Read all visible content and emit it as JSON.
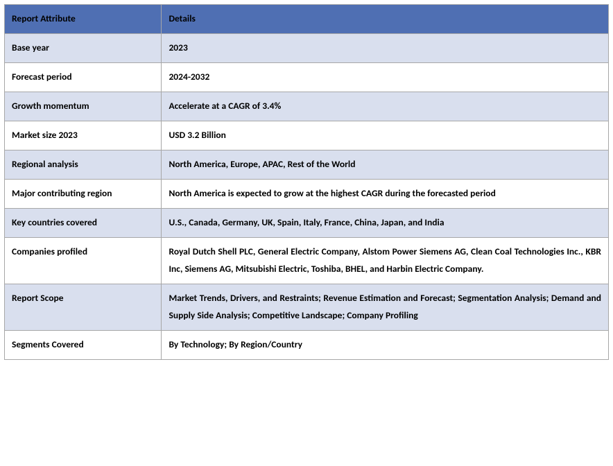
{
  "table": {
    "header_bg": "#4f6fb3",
    "header_fg": "#000000",
    "alt_row_bg": "#d9dfee",
    "row_bg": "#ffffff",
    "border_color": "#a7a7a7",
    "columns": [
      "Report Attribute",
      "Details"
    ],
    "rows": [
      {
        "attr": "Base year",
        "detail": "2023",
        "justify": false
      },
      {
        "attr": "Forecast period",
        "detail": "2024-2032",
        "justify": false
      },
      {
        "attr": "Growth momentum",
        "detail": "Accelerate at a CAGR of 3.4%",
        "justify": false
      },
      {
        "attr": "Market size 2023",
        "detail": "USD 3.2 Billion",
        "justify": false
      },
      {
        "attr": "Regional analysis",
        "detail": "North America, Europe, APAC, Rest of the World",
        "justify": false
      },
      {
        "attr": "Major contributing region",
        "detail": "North America is expected to grow at the highest CAGR during the forecasted period",
        "justify": false
      },
      {
        "attr": "Key countries covered",
        "detail": "U.S., Canada, Germany, UK, Spain, Italy, France, China, Japan, and India",
        "justify": false
      },
      {
        "attr": "Companies profiled",
        "detail": "Royal Dutch Shell PLC, General Electric Company, Alstom Power Siemens AG, Clean Coal Technologies Inc., KBR Inc, Siemens AG, Mitsubishi Electric, Toshiba, BHEL, and Harbin Electric Company.",
        "justify": true
      },
      {
        "attr": "Report Scope",
        "detail": "Market Trends, Drivers, and Restraints; Revenue Estimation and Forecast; Segmentation Analysis; Demand and Supply Side Analysis; Competitive Landscape; Company Profiling",
        "justify": true
      },
      {
        "attr": "Segments Covered",
        "detail": "By Technology; By Region/Country",
        "justify": false
      }
    ]
  }
}
